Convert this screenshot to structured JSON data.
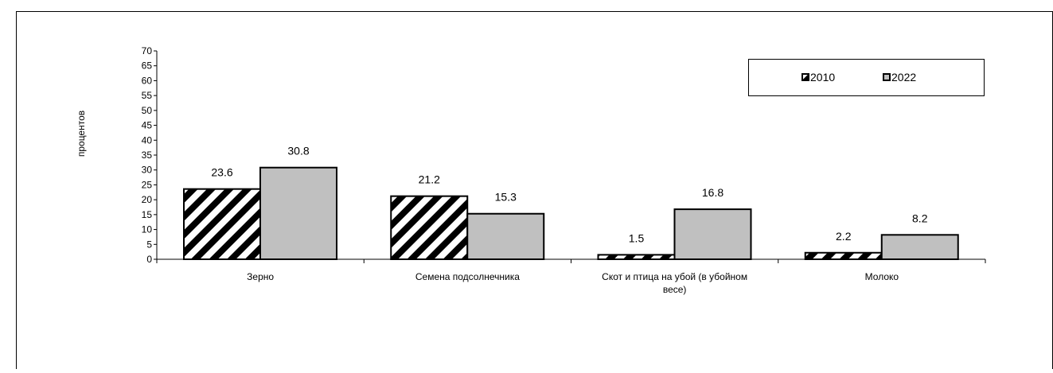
{
  "chart_data": {
    "type": "bar",
    "title": "",
    "xlabel": "",
    "ylabel": "процентов",
    "ylim": [
      0,
      70
    ],
    "ytick_step": 5,
    "grid": false,
    "legend_position": "top-right",
    "categories": [
      [
        "Зерно"
      ],
      [
        "Семена подсолнечника"
      ],
      [
        "Скот и птица на убой (в убойном",
        "весе)"
      ],
      [
        "Молоко"
      ]
    ],
    "series": [
      {
        "name": "2010",
        "values": [
          23.6,
          21.2,
          1.5,
          2.2
        ],
        "pattern": "diagonal-hatch",
        "color": "#000000"
      },
      {
        "name": "2022",
        "values": [
          30.8,
          15.3,
          16.8,
          8.2
        ],
        "pattern": "solid",
        "color": "#c0c0c0"
      }
    ]
  }
}
